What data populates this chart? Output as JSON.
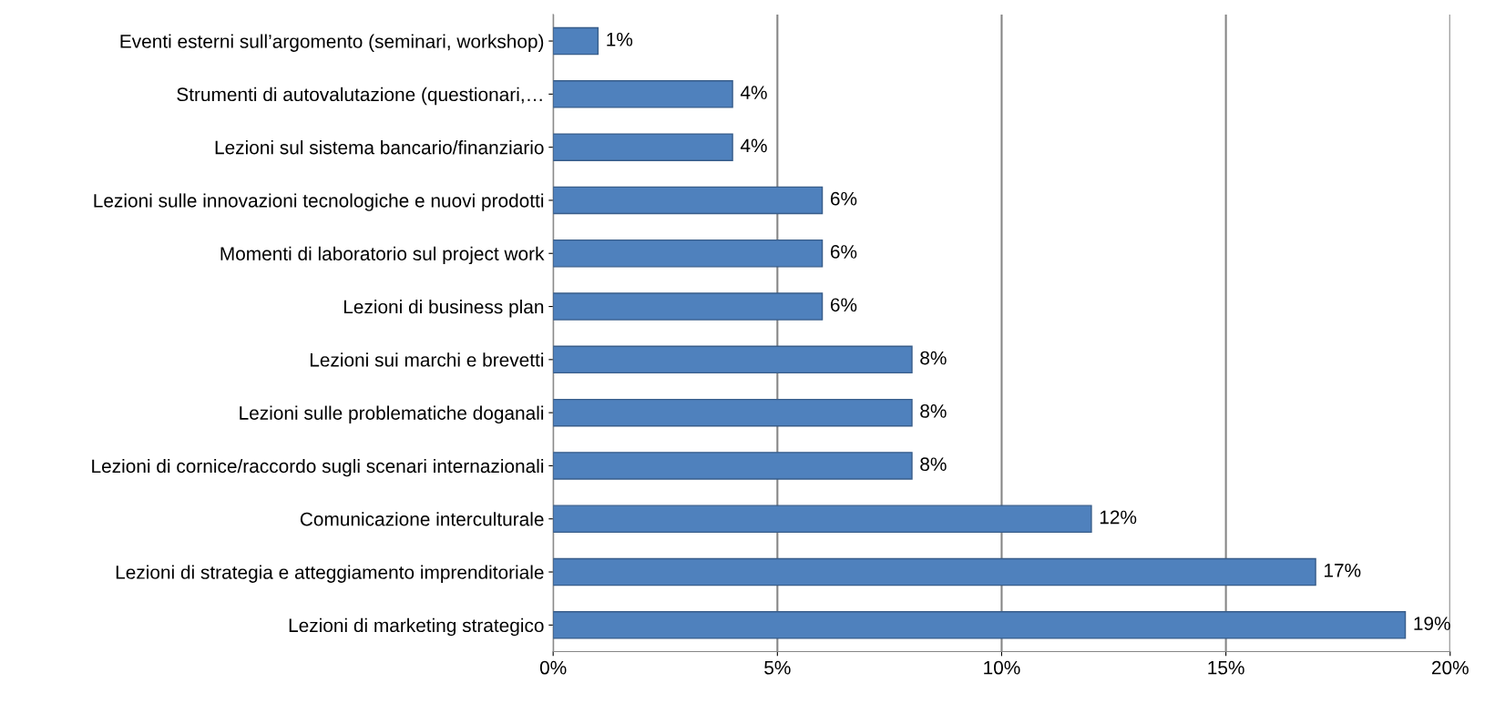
{
  "chart_data": {
    "type": "bar",
    "orientation": "horizontal",
    "categories": [
      "Eventi esterni sull’argomento (seminari, workshop)",
      "Strumenti di autovalutazione (questionari,…",
      "Lezioni sul sistema bancario/finanziario",
      "Lezioni sulle innovazioni tecnologiche e nuovi prodotti",
      "Momenti di laboratorio sul project work",
      "Lezioni di business plan",
      "Lezioni sui marchi e brevetti",
      "Lezioni sulle problematiche doganali",
      "Lezioni di cornice/raccordo sugli scenari internazionali",
      "Comunicazione interculturale",
      "Lezioni di strategia e atteggiamento imprenditoriale",
      "Lezioni di marketing strategico"
    ],
    "values": [
      1,
      4,
      4,
      6,
      6,
      6,
      8,
      8,
      8,
      12,
      17,
      19
    ],
    "value_labels": [
      "1%",
      "4%",
      "4%",
      "6%",
      "6%",
      "6%",
      "8%",
      "8%",
      "8%",
      "12%",
      "17%",
      "19%"
    ],
    "color": "#4f81bd",
    "xlim": [
      0,
      20
    ],
    "xticks": [
      {
        "value": 0,
        "label": "0%"
      },
      {
        "value": 5,
        "label": "5%"
      },
      {
        "value": 10,
        "label": "10%"
      },
      {
        "value": 15,
        "label": "15%"
      },
      {
        "value": 20,
        "label": "20%"
      }
    ],
    "grid": "x",
    "legend": false
  }
}
